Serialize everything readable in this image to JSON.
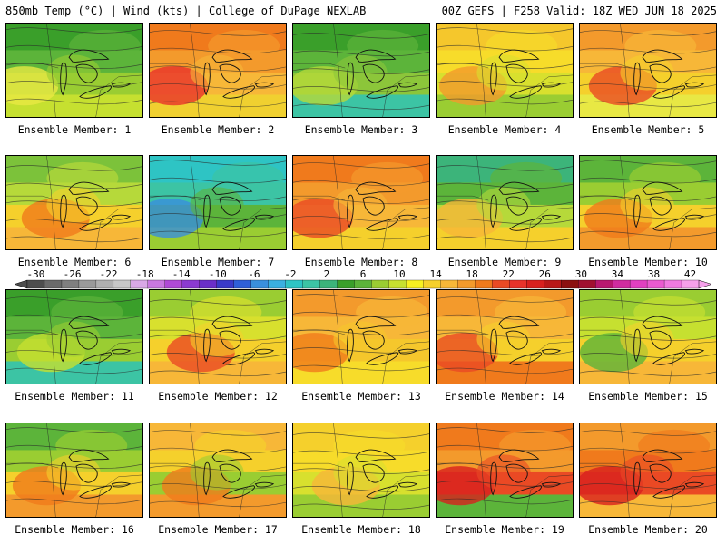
{
  "header": {
    "left": "850mb Temp (°C) | Wind (kts) | College of DuPage NEXLAB",
    "right": "00Z GEFS | F258 Valid: 18Z WED JUN 18 2025"
  },
  "member_label_prefix": "Ensemble Member: ",
  "members": [
    {
      "label": "Ensemble Member: 1",
      "palette": [
        "#3a9f2a",
        "#5cb43a",
        "#9acd32",
        "#c6e030"
      ],
      "accent": "#e8e844"
    },
    {
      "label": "Ensemble Member: 2",
      "palette": [
        "#f07a1c",
        "#f39a2c",
        "#f7b738",
        "#f0d030"
      ],
      "accent": "#e8322a"
    },
    {
      "label": "Ensemble Member: 3",
      "palette": [
        "#3a9f2a",
        "#5cb43a",
        "#8cc63a",
        "#3cc4a4"
      ],
      "accent": "#b6d93a"
    },
    {
      "label": "Ensemble Member: 4",
      "palette": [
        "#f5c72c",
        "#f7dc2a",
        "#d8e02e",
        "#9acd32"
      ],
      "accent": "#f39a2c"
    },
    {
      "label": "Ensemble Member: 5",
      "palette": [
        "#f39a2c",
        "#f7b738",
        "#f5d02c",
        "#e8e844"
      ],
      "accent": "#ea4a24"
    },
    {
      "label": "Ensemble Member: 6",
      "palette": [
        "#7cc23a",
        "#b6d93a",
        "#f5d02c",
        "#f7b738"
      ],
      "accent": "#f07a1c"
    },
    {
      "label": "Ensemble Member: 7",
      "palette": [
        "#2ec4c4",
        "#3cc4a4",
        "#5cb43a",
        "#9acd32"
      ],
      "accent": "#3a8fdc"
    },
    {
      "label": "Ensemble Member: 8",
      "palette": [
        "#f07a1c",
        "#f39a2c",
        "#f7b738",
        "#f5d02c"
      ],
      "accent": "#ea4a24"
    },
    {
      "label": "Ensemble Member: 9",
      "palette": [
        "#3cb47a",
        "#5cb43a",
        "#b6d93a",
        "#f5d02c"
      ],
      "accent": "#f7b738"
    },
    {
      "label": "Ensemble Member: 10",
      "palette": [
        "#5cb43a",
        "#9acd32",
        "#f5d02c",
        "#f39a2c"
      ],
      "accent": "#f07a1c"
    },
    {
      "label": "Ensemble Member: 11",
      "palette": [
        "#3a9f2a",
        "#5cb43a",
        "#9acd32",
        "#3cc4a4"
      ],
      "accent": "#c6e030"
    },
    {
      "label": "Ensemble Member: 12",
      "palette": [
        "#9acd32",
        "#d8e02e",
        "#f5d02c",
        "#f7b738"
      ],
      "accent": "#ea4a24"
    },
    {
      "label": "Ensemble Member: 13",
      "palette": [
        "#f39a2c",
        "#f7b738",
        "#f5c72c",
        "#f7dc2a"
      ],
      "accent": "#f07a1c"
    },
    {
      "label": "Ensemble Member: 14",
      "palette": [
        "#f39a2c",
        "#f7b738",
        "#f5d02c",
        "#f07a1c"
      ],
      "accent": "#ea4a24"
    },
    {
      "label": "Ensemble Member: 15",
      "palette": [
        "#9acd32",
        "#c6e030",
        "#f5d02c",
        "#f7b738"
      ],
      "accent": "#5cb43a"
    },
    {
      "label": "Ensemble Member: 16",
      "palette": [
        "#5cb43a",
        "#9acd32",
        "#f5d02c",
        "#f39a2c"
      ],
      "accent": "#f07a1c"
    },
    {
      "label": "Ensemble Member: 17",
      "palette": [
        "#f7b738",
        "#f5d02c",
        "#9acd32",
        "#f39a2c"
      ],
      "accent": "#f07a1c"
    },
    {
      "label": "Ensemble Member: 18",
      "palette": [
        "#f5d02c",
        "#f7dc2a",
        "#d8e02e",
        "#9acd32"
      ],
      "accent": "#f7b738"
    },
    {
      "label": "Ensemble Member: 19",
      "palette": [
        "#f07a1c",
        "#f39a2c",
        "#ea4a24",
        "#5cb43a"
      ],
      "accent": "#d8201e"
    },
    {
      "label": "Ensemble Member: 20",
      "palette": [
        "#f39a2c",
        "#f07a1c",
        "#ea4a24",
        "#f7b738"
      ],
      "accent": "#d8201e"
    }
  ],
  "colorbar": {
    "tick_labels": [
      "-30",
      "-26",
      "-22",
      "-18",
      "-14",
      "-10",
      "-6",
      "-2",
      "2",
      "6",
      "10",
      "14",
      "18",
      "22",
      "26",
      "30",
      "34",
      "38",
      "42"
    ],
    "colors": [
      "#4d4d4d",
      "#6a6a6a",
      "#7f7f7f",
      "#9a9a9a",
      "#b0b0b0",
      "#c7c7c7",
      "#d9a8e6",
      "#c978e0",
      "#b04ad6",
      "#8b3ad0",
      "#6a2ec8",
      "#3a3ac8",
      "#2f5fd8",
      "#3a8fdc",
      "#3ab0e0",
      "#2ec4c4",
      "#3cc4a4",
      "#3cb47a",
      "#3a9f2a",
      "#5cb43a",
      "#9acd32",
      "#c6e030",
      "#f7f020",
      "#f5d02c",
      "#f7b738",
      "#f39a2c",
      "#f07a1c",
      "#ea4a24",
      "#e8322a",
      "#d8201e",
      "#b81818",
      "#8b1010",
      "#a01030",
      "#b81870",
      "#d02ca0",
      "#e040c0",
      "#ea5ad0",
      "#f07ae0",
      "#f5a0ea"
    ]
  }
}
